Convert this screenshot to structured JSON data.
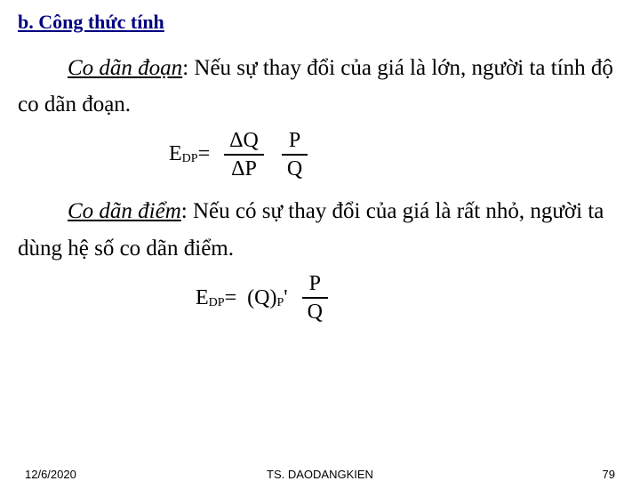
{
  "heading": "b. Công thức tính",
  "para1_lead": "Co dãn đoạn",
  "para1_rest": ": Nếu sự thay đổi của giá là lớn, người ta tính độ co dãn đoạn.",
  "formula1": {
    "lhs_E": "E",
    "lhs_sub": "DP",
    "eq": "=",
    "frac1_num": "ΔQ",
    "frac1_den": "ΔP",
    "frac2_num": "P",
    "frac2_den": "Q"
  },
  "para2_lead": "Co dãn điểm",
  "para2_rest": ": Nếu có sự thay đổi của giá là rất nhỏ, người ta dùng hệ số co dãn điểm.",
  "formula2": {
    "lhs_E": "E",
    "lhs_sub": "DP",
    "eq": "=",
    "mid_a": "(Q)",
    "mid_sub": "P",
    "mid_b": "'",
    "frac_num": "P",
    "frac_den": "Q"
  },
  "footer": {
    "date": "12/6/2020",
    "author": "TS. DAODANGKIEN",
    "page": "79"
  }
}
